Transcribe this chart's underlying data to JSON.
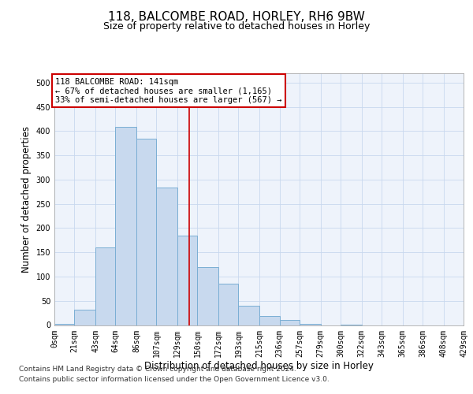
{
  "title1": "118, BALCOMBE ROAD, HORLEY, RH6 9BW",
  "title2": "Size of property relative to detached houses in Horley",
  "xlabel": "Distribution of detached houses by size in Horley",
  "ylabel": "Number of detached properties",
  "bar_color": "#c8d9ee",
  "bar_edge_color": "#6aа2cc",
  "grid_color": "#c8d8ee",
  "background_color": "#eef3fb",
  "bins": [
    0,
    21,
    43,
    64,
    86,
    107,
    129,
    150,
    172,
    193,
    215,
    236,
    257,
    279,
    300,
    322,
    343,
    365,
    386,
    408,
    429
  ],
  "counts": [
    2,
    32,
    160,
    408,
    385,
    283,
    185,
    120,
    85,
    40,
    18,
    10,
    3,
    0,
    1,
    0,
    0,
    0,
    0,
    0
  ],
  "property_size": 141,
  "vline_color": "#cc0000",
  "annotation_line1": "118 BALCOMBE ROAD: 141sqm",
  "annotation_line2": "← 67% of detached houses are smaller (1,165)",
  "annotation_line3": "33% of semi-detached houses are larger (567) →",
  "annotation_box_color": "#ffffff",
  "annotation_box_edge": "#cc0000",
  "ylim": [
    0,
    520
  ],
  "yticks": [
    0,
    50,
    100,
    150,
    200,
    250,
    300,
    350,
    400,
    450,
    500
  ],
  "footer1": "Contains HM Land Registry data © Crown copyright and database right 2024.",
  "footer2": "Contains public sector information licensed under the Open Government Licence v3.0.",
  "title1_fontsize": 11,
  "title2_fontsize": 9,
  "tick_fontsize": 7,
  "ylabel_fontsize": 8.5,
  "xlabel_fontsize": 8.5,
  "footer_fontsize": 6.5
}
